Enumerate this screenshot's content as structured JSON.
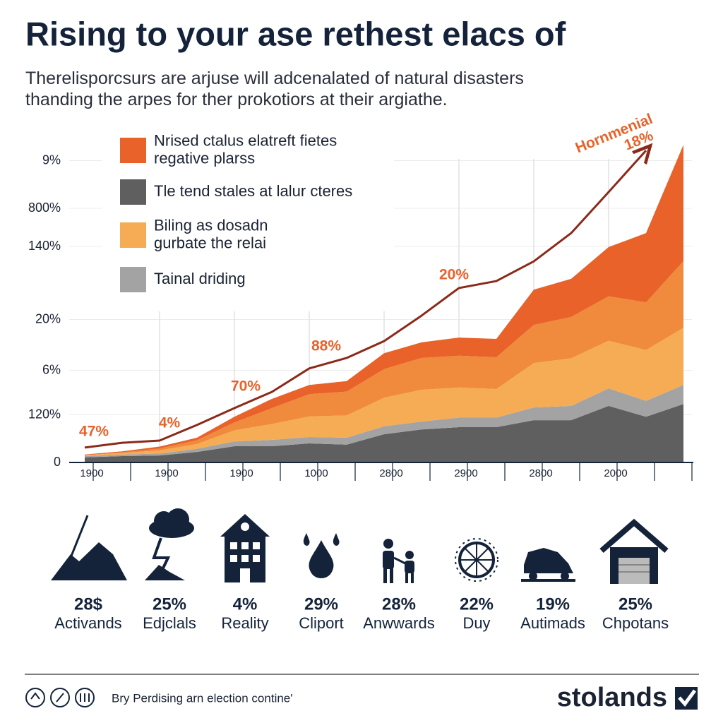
{
  "chart_data": {
    "type": "area",
    "title": "Rising to your ase rethest elacs of",
    "subtitle": "Therelisporcsurs are arjuse will adcenalated of natural disasters\nthanding the arpes for ther prokotiors at their argiathe.",
    "categories": [
      "1900",
      null,
      "1900",
      null,
      "1900",
      null,
      "1000",
      null,
      "2800",
      null,
      "2900",
      null,
      "2800",
      null,
      "2000",
      null,
      null
    ],
    "ylim": [
      0,
      100
    ],
    "yticks": [
      0,
      {
        "value": 15,
        "label": "120%"
      },
      {
        "value": 29,
        "label": "6%"
      },
      {
        "value": 45,
        "label": "20%"
      },
      {
        "value": 68,
        "label": "140%"
      },
      {
        "value": 80,
        "label": "800%"
      },
      {
        "value": 95,
        "label": "9%"
      }
    ],
    "grid": true,
    "legend": "upper left",
    "series": [
      {
        "name": "Tle tend stales at lalur cteres",
        "color": "#5f5f5f",
        "values": [
          1.6,
          2,
          2.2,
          3.3,
          5.1,
          5.1,
          6,
          5.6,
          8.9,
          10.4,
          11.1,
          11.1,
          13.3,
          13.3,
          17.8,
          14.4,
          18.4
        ]
      },
      {
        "name": "Tainal driding",
        "color": "#a3a3a3",
        "values": [
          0.4,
          0.5,
          0.6,
          1,
          1.5,
          2,
          2,
          2.2,
          2.5,
          2.5,
          3,
          3,
          4,
          4.5,
          5.5,
          5,
          6
        ]
      },
      {
        "name": "Biling as dosadn\ngurbate the relai",
        "color": "#f5ac55",
        "values": [
          0.3,
          0.5,
          1,
          1.5,
          3.5,
          5,
          6.5,
          7,
          9,
          10,
          9.5,
          9,
          14,
          15,
          15,
          16,
          18
        ]
      },
      {
        "color": "#f08a3c",
        "values": [
          0,
          0.2,
          0.6,
          1.2,
          2.5,
          5,
          7,
          7.5,
          9,
          10,
          10,
          10,
          12,
          13,
          14,
          15,
          21
        ]
      },
      {
        "name": "Nrised ctalus elatreft fietes\nregative plarss",
        "color": "#e8622a",
        "values": [
          0.2,
          0.3,
          0.6,
          0.8,
          1.8,
          2.9,
          2.9,
          3.3,
          5,
          4.9,
          5.7,
          5.8,
          11.1,
          12,
          15.5,
          21.8,
          36.6
        ]
      }
    ],
    "line_series": {
      "color": "#8b2a1a",
      "values": [
        4.7,
        6.2,
        6.9,
        11.8,
        17.1,
        22.2,
        29.6,
        32.9,
        38.2,
        46.2,
        54.9,
        57.1,
        63.3,
        72.2,
        85.1,
        98.2,
        null
      ]
    },
    "annotations": [
      "47%",
      "4%",
      "70%",
      "88%",
      "20%",
      "Hornmenial",
      "18%"
    ]
  },
  "stats": [
    {
      "value": "28$",
      "label": "Activands"
    },
    {
      "value": "25%",
      "label": "Edjclals"
    },
    {
      "value": "4%",
      "label": "Reality"
    },
    {
      "value": "29%",
      "label": "Cliport"
    },
    {
      "value": "28%",
      "label": "Anwwards"
    },
    {
      "value": "22%",
      "label": "Duy"
    },
    {
      "value": "19%",
      "label": "Autimads"
    },
    {
      "value": "25%",
      "label": "Chpotans"
    }
  ],
  "footer": {
    "text": "Bry Perdising arn election contine'",
    "brand": "stolands"
  }
}
